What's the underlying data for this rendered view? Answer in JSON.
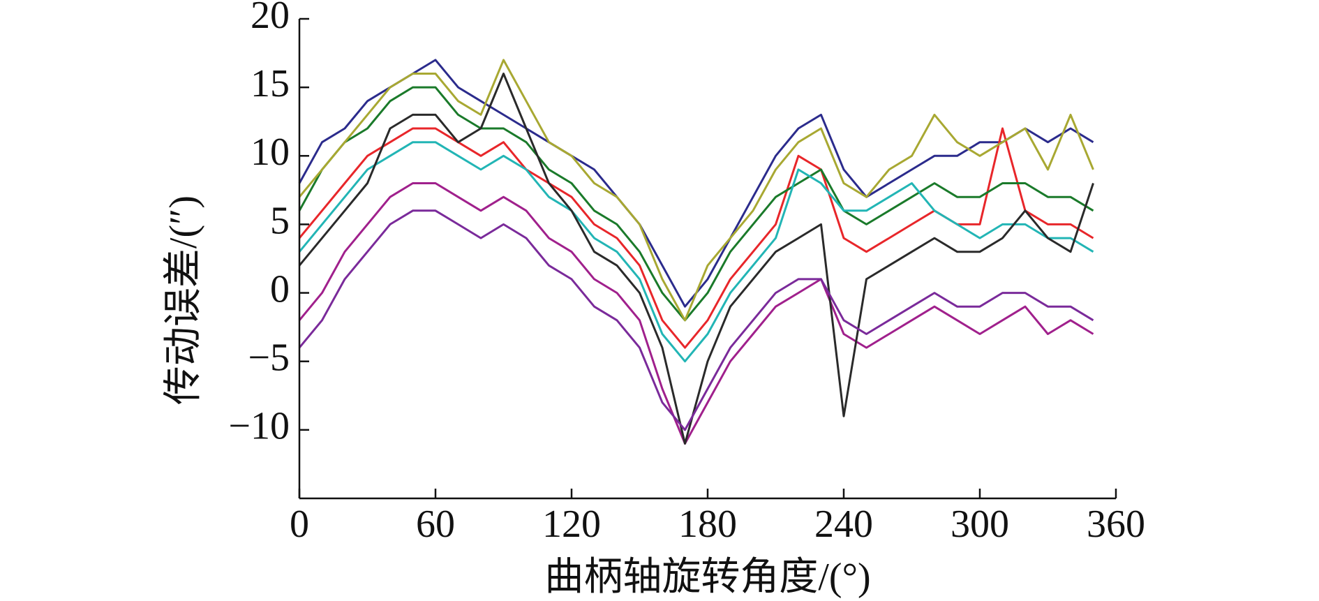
{
  "chart_data": {
    "type": "line",
    "x_label": "曲柄轴旋转角度/(°)",
    "y_label": "传动误差/(″)",
    "xlim": [
      0,
      360
    ],
    "xticks": [
      0,
      60,
      120,
      180,
      240,
      300,
      360
    ],
    "ylim": [
      -15,
      20
    ],
    "yticks": [
      {
        "value": -10,
        "label": "−10"
      },
      {
        "value": -5,
        "label": "−5"
      },
      0,
      5,
      10,
      15,
      20
    ],
    "grid": false,
    "x": [
      0,
      10,
      20,
      30,
      40,
      50,
      60,
      70,
      80,
      90,
      100,
      110,
      120,
      130,
      140,
      150,
      160,
      170,
      180,
      190,
      200,
      210,
      220,
      230,
      240,
      250,
      260,
      270,
      280,
      290,
      300,
      310,
      320,
      330,
      340,
      350
    ],
    "series": [
      {
        "color": "#2b2b8c",
        "values": [
          8,
          11,
          12,
          14,
          15,
          16,
          17,
          15,
          14,
          13,
          12,
          11,
          10,
          9,
          7,
          5,
          2,
          -1,
          1,
          4,
          7,
          10,
          12,
          13,
          9,
          7,
          8,
          9,
          10,
          10,
          11,
          11,
          12,
          11,
          12,
          11
        ]
      },
      {
        "color": "#e8262a",
        "values": [
          4,
          6,
          8,
          10,
          11,
          12,
          12,
          11,
          10,
          11,
          9,
          8,
          7,
          5,
          4,
          2,
          -2,
          -4,
          -2,
          1,
          3,
          5,
          10,
          9,
          4,
          3,
          4,
          5,
          6,
          5,
          5,
          12,
          6,
          5,
          5,
          4
        ]
      },
      {
        "color": "#1a7a2a",
        "values": [
          6,
          9,
          11,
          12,
          14,
          15,
          15,
          13,
          12,
          12,
          11,
          9,
          8,
          6,
          5,
          3,
          0,
          -2,
          0,
          3,
          5,
          7,
          8,
          9,
          6,
          5,
          6,
          7,
          8,
          7,
          7,
          8,
          8,
          7,
          7,
          6
        ]
      },
      {
        "color": "#a0208c",
        "values": [
          -2,
          0,
          3,
          5,
          7,
          8,
          8,
          7,
          6,
          7,
          6,
          4,
          3,
          1,
          0,
          -2,
          -7,
          -11,
          -8,
          -5,
          -3,
          -1,
          0,
          1,
          -3,
          -4,
          -3,
          -2,
          -1,
          -2,
          -3,
          -2,
          -1,
          -3,
          -2,
          -3
        ]
      },
      {
        "color": "#22b5b5",
        "values": [
          3,
          5,
          7,
          9,
          10,
          11,
          11,
          10,
          9,
          10,
          9,
          7,
          6,
          4,
          3,
          1,
          -3,
          -5,
          -3,
          0,
          2,
          4,
          9,
          8,
          6,
          6,
          7,
          8,
          6,
          5,
          4,
          5,
          5,
          4,
          4,
          3
        ]
      },
      {
        "color": "#a8a832",
        "values": [
          7,
          9,
          11,
          13,
          15,
          16,
          16,
          14,
          13,
          17,
          14,
          11,
          10,
          8,
          7,
          5,
          1,
          -2,
          2,
          4,
          6,
          9,
          11,
          12,
          8,
          7,
          9,
          10,
          13,
          11,
          10,
          11,
          12,
          9,
          13,
          9
        ]
      },
      {
        "color": "#2a2a2a",
        "values": [
          2,
          4,
          6,
          8,
          12,
          13,
          13,
          11,
          12,
          16,
          12,
          8,
          6,
          3,
          2,
          0,
          -4,
          -11,
          -5,
          -1,
          1,
          3,
          4,
          5,
          -9,
          1,
          2,
          3,
          4,
          3,
          3,
          4,
          6,
          4,
          3,
          8
        ]
      },
      {
        "color": "#7a2a9a",
        "values": [
          -4,
          -2,
          1,
          3,
          5,
          6,
          6,
          5,
          4,
          5,
          4,
          2,
          1,
          -1,
          -2,
          -4,
          -8,
          -10,
          -7,
          -4,
          -2,
          0,
          1,
          1,
          -2,
          -3,
          -2,
          -1,
          0,
          -1,
          -1,
          0,
          0,
          -1,
          -1,
          -2
        ]
      }
    ]
  }
}
